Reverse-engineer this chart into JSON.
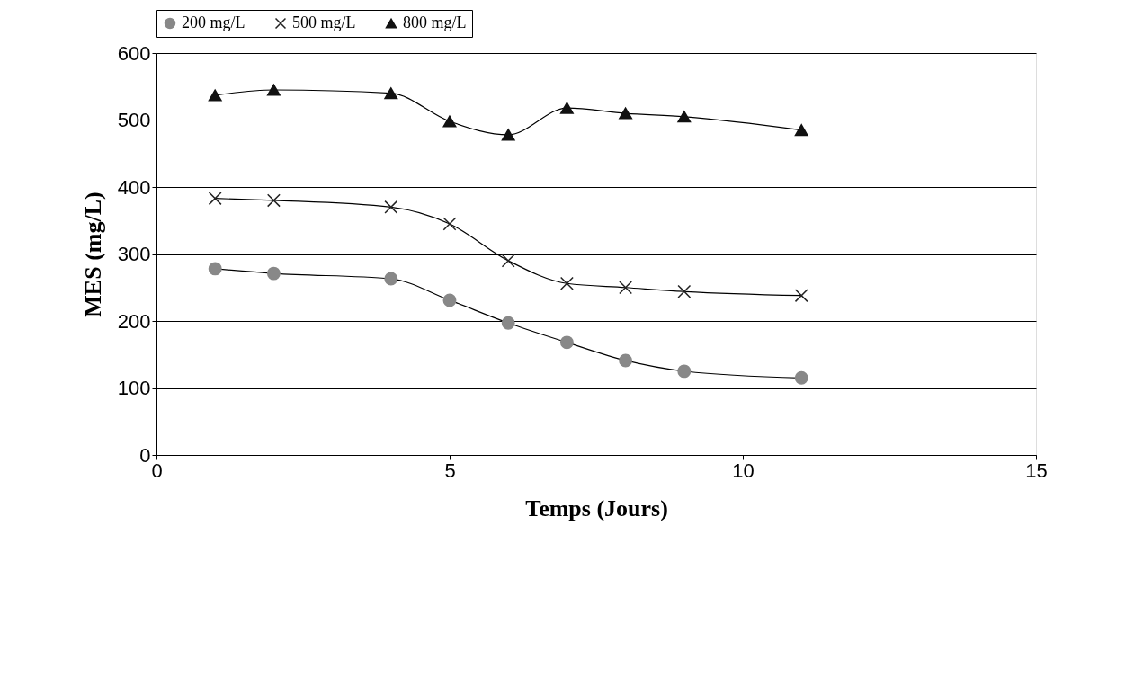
{
  "chart_data": {
    "type": "line",
    "xlabel": "Temps (Jours)",
    "ylabel": "MES (mg/L)",
    "x": [
      1,
      2,
      4,
      5,
      6,
      7,
      8,
      9,
      11
    ],
    "series": [
      {
        "name": "200 mg/L",
        "color": "#888888",
        "marker": "circle",
        "values": [
          278,
          271,
          263,
          231,
          197,
          168,
          141,
          125,
          115
        ]
      },
      {
        "name": "500 mg/L",
        "color": "#222222",
        "marker": "cross",
        "values": [
          383,
          380,
          370,
          345,
          290,
          256,
          250,
          244,
          238
        ]
      },
      {
        "name": "800 mg/L",
        "color": "#111111",
        "marker": "triangle",
        "values": [
          537,
          545,
          540,
          498,
          478,
          518,
          510,
          505,
          485
        ]
      }
    ],
    "xlim": [
      0,
      15
    ],
    "xticks": [
      0,
      5,
      10,
      15
    ],
    "ylim": [
      0,
      600
    ],
    "yticks": [
      0,
      100,
      200,
      300,
      400,
      500,
      600
    ],
    "grid": "y",
    "legend": "top",
    "line_style": "solid"
  }
}
